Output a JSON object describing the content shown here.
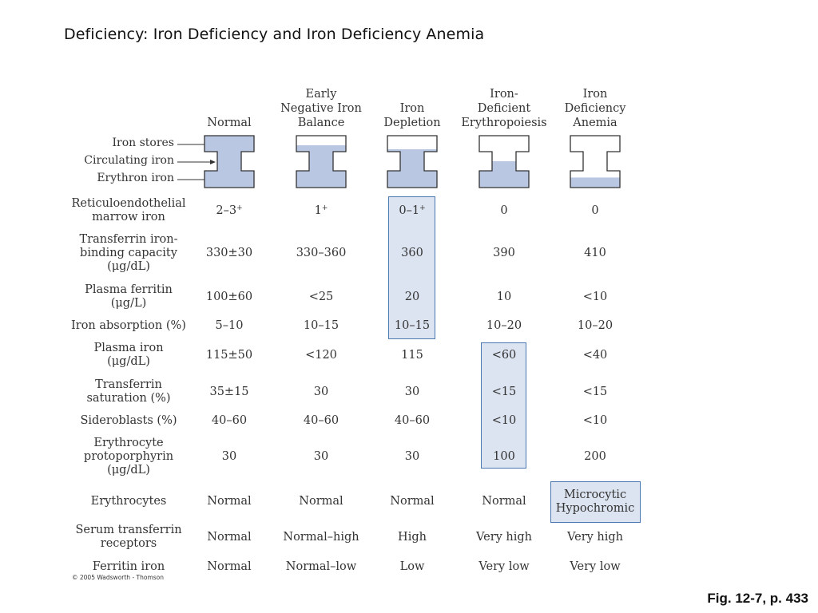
{
  "title": "Deficiency:  Iron Deficiency and Iron Deficiency Anemia",
  "columns": [
    {
      "name": "Normal"
    },
    {
      "name": "Early\nNegative Iron\nBalance"
    },
    {
      "name": "Iron\nDepletion"
    },
    {
      "name": "Iron-\nDeficient\nErythropoiesis"
    },
    {
      "name": "Iron\nDeficiency\nAnemia"
    }
  ],
  "stage_labels": {
    "stores": "Iron stores",
    "circulating": "Circulating iron",
    "erythron": "Erythron iron"
  },
  "iron_fill_levels": [
    {
      "stores": 1.0,
      "circulating": 1.0,
      "erythron": 1.0
    },
    {
      "stores": 0.4,
      "circulating": 1.0,
      "erythron": 1.0
    },
    {
      "stores": 0.15,
      "circulating": 1.0,
      "erythron": 1.0
    },
    {
      "stores": 0.0,
      "circulating": 0.5,
      "erythron": 1.0
    },
    {
      "stores": 0.0,
      "circulating": 0.0,
      "erythron": 0.6
    }
  ],
  "rows": [
    {
      "label": "Reticuloendothelial\nmarrow iron",
      "values": [
        "2–3",
        "1",
        "0–1",
        "0",
        "0"
      ],
      "sup": [
        "+",
        "+",
        "+",
        "",
        ""
      ]
    },
    {
      "label": "Transferrin iron-\nbinding capacity\n(μg/dL)",
      "values": [
        "330±30",
        "330–360",
        "360",
        "390",
        "410"
      ]
    },
    {
      "label": "Plasma ferritin\n(μg/L)",
      "values": [
        "100±60",
        "<25",
        "20",
        "10",
        "<10"
      ]
    },
    {
      "label": "Iron absorption (%)",
      "values": [
        "5–10",
        "10–15",
        "10–15",
        "10–20",
        "10–20"
      ]
    },
    {
      "label": "Plasma iron\n(μg/dL)",
      "values": [
        "115±50",
        "<120",
        "115",
        "<60",
        "<40"
      ]
    },
    {
      "label": "Transferrin\nsaturation (%)",
      "values": [
        "35±15",
        "30",
        "30",
        "<15",
        "<15"
      ]
    },
    {
      "label": "Sideroblasts (%)",
      "values": [
        "40–60",
        "40–60",
        "40–60",
        "<10",
        "<10"
      ]
    },
    {
      "label": "Erythrocyte\nprotoporphyrin\n(μg/dL)",
      "values": [
        "30",
        "30",
        "30",
        "100",
        "200"
      ]
    },
    {
      "label": "Erythrocytes",
      "values": [
        "Normal",
        "Normal",
        "Normal",
        "Normal",
        "Microcytic\nHypochromic"
      ]
    },
    {
      "label": "Serum transferrin\nreceptors",
      "values": [
        "Normal",
        "Normal–high",
        "High",
        "Very high",
        "Very high"
      ]
    },
    {
      "label": "Ferritin iron",
      "values": [
        "Normal",
        "Normal–low",
        "Low",
        "Very low",
        "Very low"
      ]
    }
  ],
  "highlight_color": "#dce4f1",
  "highlight_border": "#4a78b0",
  "copyright": "© 2005 Wadsworth - Thomson",
  "figure_ref": "Fig. 12-7, p. 433"
}
